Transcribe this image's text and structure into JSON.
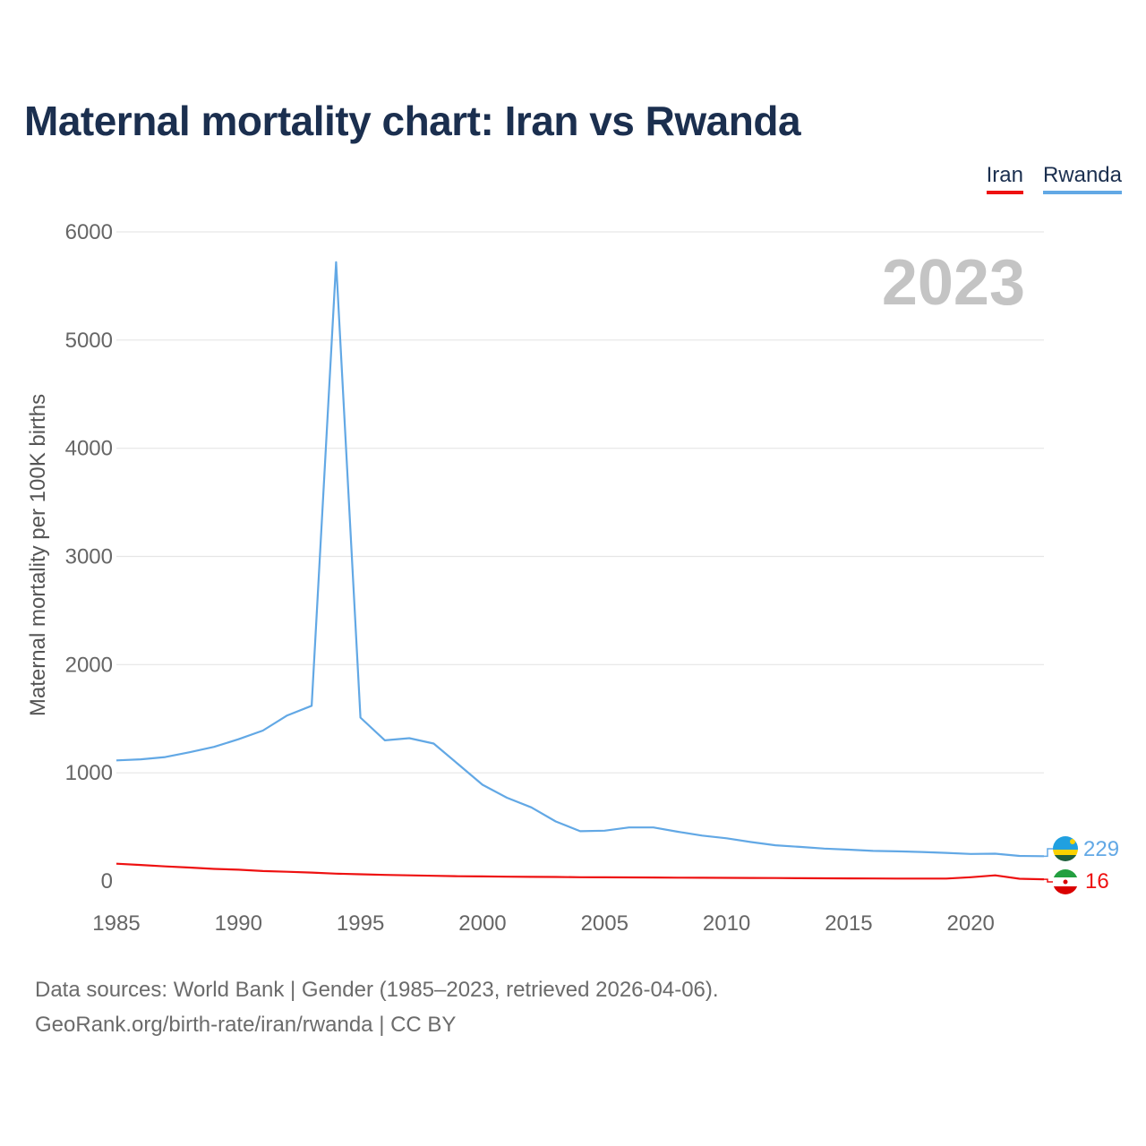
{
  "title": "Maternal mortality chart: Iran vs Rwanda",
  "year_label": "2023",
  "legend": [
    {
      "name": "Iran",
      "color": "#ee1111"
    },
    {
      "name": "Rwanda",
      "color": "#62a8e5"
    }
  ],
  "footer": {
    "source_line": "Data sources: World Bank | Gender (1985–2023, retrieved 2026-04-06).",
    "credit_line": "GeoRank.org/birth-rate/iran/rwanda | CC BY"
  },
  "end_labels": {
    "rwanda": "229",
    "iran": "16"
  },
  "flag_icons": {
    "rwanda": "rwanda-flag-icon",
    "iran": "iran-flag-icon"
  },
  "chart_data": {
    "type": "line",
    "title": "Maternal mortality chart: Iran vs Rwanda",
    "xlabel": "",
    "ylabel": "Maternal mortality per 100K births",
    "xlim": [
      1985,
      2023
    ],
    "ylim": [
      0,
      6000
    ],
    "xticks": [
      1985,
      1990,
      1995,
      2000,
      2005,
      2010,
      2015,
      2020
    ],
    "yticks": [
      0,
      1000,
      2000,
      3000,
      4000,
      5000,
      6000
    ],
    "grid": true,
    "legend_position": "top-right",
    "x": [
      1985,
      1986,
      1987,
      1988,
      1989,
      1990,
      1991,
      1992,
      1993,
      1994,
      1995,
      1996,
      1997,
      1998,
      1999,
      2000,
      2001,
      2002,
      2003,
      2004,
      2005,
      2006,
      2007,
      2008,
      2009,
      2010,
      2011,
      2012,
      2013,
      2014,
      2015,
      2016,
      2017,
      2018,
      2019,
      2020,
      2021,
      2022,
      2023
    ],
    "series": [
      {
        "name": "Iran",
        "color": "#ee1111",
        "values": [
          160,
          148,
          135,
          124,
          112,
          104,
          92,
          85,
          78,
          68,
          62,
          56,
          52,
          48,
          44,
          42,
          40,
          38,
          37,
          35,
          34,
          33,
          32,
          31,
          30,
          29,
          28,
          27,
          26,
          25,
          24,
          23,
          22,
          22,
          22,
          35,
          52,
          21,
          16
        ]
      },
      {
        "name": "Rwanda",
        "color": "#62a8e5",
        "values": [
          1115,
          1125,
          1145,
          1190,
          1240,
          1310,
          1390,
          1530,
          1620,
          5720,
          1510,
          1300,
          1320,
          1270,
          1080,
          890,
          770,
          680,
          550,
          460,
          465,
          495,
          495,
          455,
          420,
          395,
          360,
          330,
          315,
          300,
          290,
          278,
          274,
          268,
          260,
          250,
          252,
          232,
          229
        ]
      }
    ]
  }
}
